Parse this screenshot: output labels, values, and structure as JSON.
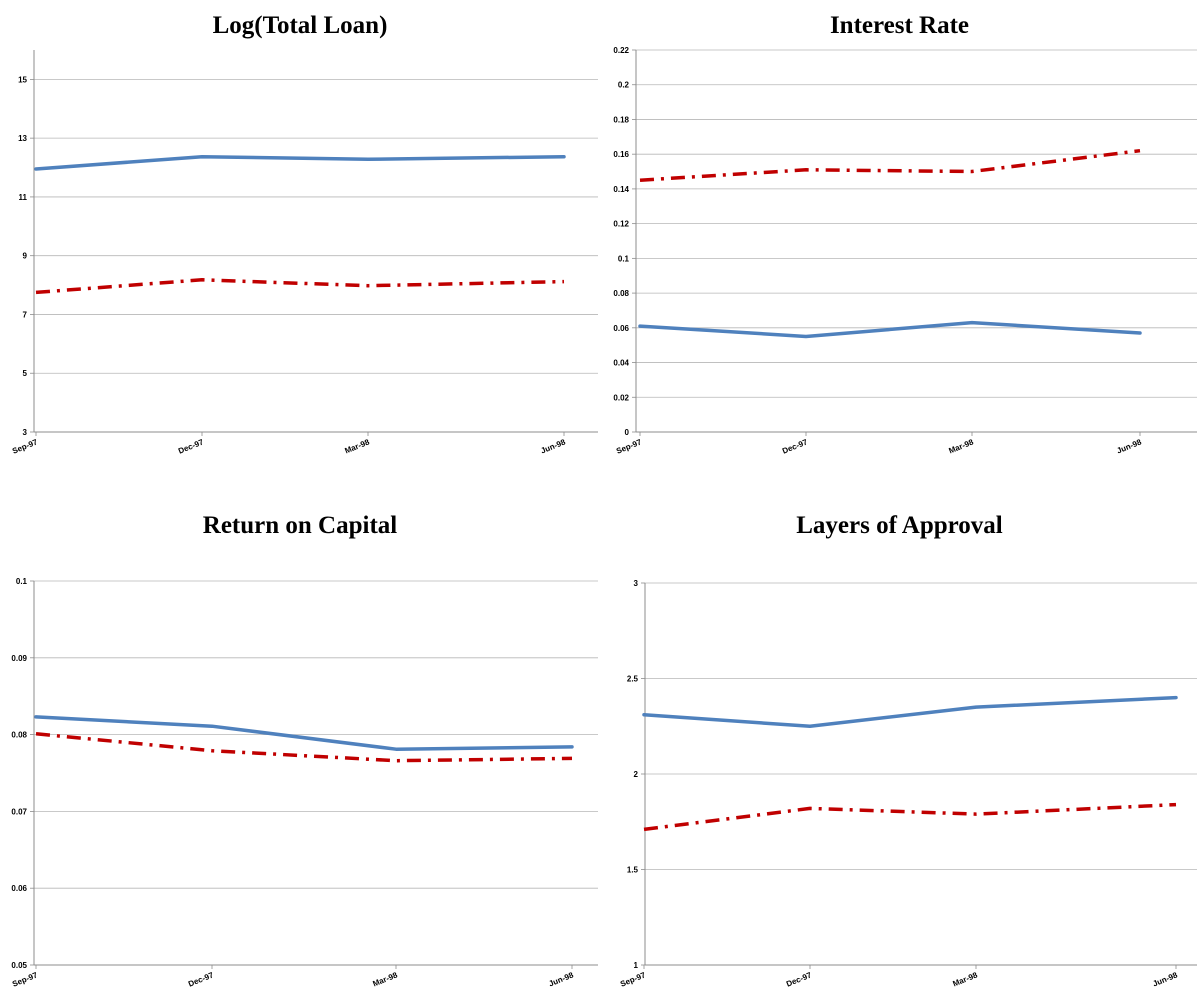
{
  "colors": {
    "blue": "#4f81bd",
    "red": "#c00000",
    "grid": "#b7b7b7",
    "axis": "#8c8c8c"
  },
  "chart_data": [
    {
      "type": "line",
      "title": "Log(Total Loan)",
      "xlabel": "",
      "ylabel": "",
      "categories": [
        "Sep-97",
        "Dec-97",
        "Mar-98",
        "Jun-98"
      ],
      "ylim": [
        3,
        16
      ],
      "yticks": [
        "3",
        "5",
        "7",
        "9",
        "11",
        "13",
        "15"
      ],
      "grid": true,
      "series": [
        {
          "color": "#4f81bd",
          "style": "solid",
          "values": [
            11.95,
            12.37,
            12.28,
            12.37
          ]
        },
        {
          "color": "#c00000",
          "style": "dash-dot",
          "values": [
            7.75,
            8.18,
            7.98,
            8.12
          ]
        }
      ]
    },
    {
      "type": "line",
      "title": "Interest Rate",
      "xlabel": "",
      "ylabel": "",
      "categories": [
        "Sep-97",
        "Dec-97",
        "Mar-98",
        "Jun-98"
      ],
      "ylim": [
        0,
        0.22
      ],
      "yticks": [
        "0",
        "0.02",
        "0.04",
        "0.06",
        "0.08",
        "0.1",
        "0.12",
        "0.14",
        "0.16",
        "0.18",
        "0.2",
        "0.22"
      ],
      "grid": true,
      "series": [
        {
          "color": "#4f81bd",
          "style": "solid",
          "values": [
            0.061,
            0.055,
            0.063,
            0.057
          ]
        },
        {
          "color": "#c00000",
          "style": "dash-dot",
          "values": [
            0.145,
            0.151,
            0.15,
            0.162
          ]
        }
      ]
    },
    {
      "type": "line",
      "title": "Return on Capital",
      "xlabel": "",
      "ylabel": "",
      "categories": [
        "Sep-97",
        "Dec-97",
        "Mar-98",
        "Jun-98"
      ],
      "ylim": [
        0.05,
        0.1
      ],
      "yticks": [
        "0.05",
        "0.06",
        "0.07",
        "0.08",
        "0.09",
        "0.1"
      ],
      "grid": true,
      "series": [
        {
          "color": "#4f81bd",
          "style": "solid",
          "values": [
            0.0823,
            0.0811,
            0.0781,
            0.0784
          ]
        },
        {
          "color": "#c00000",
          "style": "dash-dot",
          "values": [
            0.0801,
            0.0779,
            0.0766,
            0.0769
          ]
        }
      ]
    },
    {
      "type": "line",
      "title": "Layers of Approval",
      "xlabel": "",
      "ylabel": "",
      "categories": [
        "Sep-97",
        "Dec-97",
        "Mar-98",
        "Jun-98"
      ],
      "ylim": [
        1,
        3
      ],
      "yticks": [
        "1",
        "1.5",
        "2",
        "2.5",
        "3"
      ],
      "grid": true,
      "series": [
        {
          "color": "#4f81bd",
          "style": "solid",
          "values": [
            2.31,
            2.25,
            2.35,
            2.4
          ]
        },
        {
          "color": "#c00000",
          "style": "dash-dot",
          "values": [
            1.71,
            1.82,
            1.79,
            1.84
          ]
        }
      ]
    }
  ]
}
